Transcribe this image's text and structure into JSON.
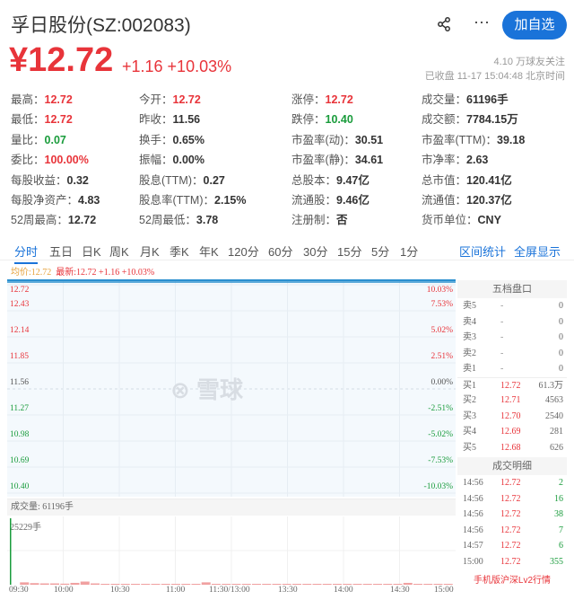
{
  "header": {
    "title": "孚日股份(SZ:002083)",
    "add_label": "加自选",
    "more": "···"
  },
  "quote": {
    "price": "¥12.72",
    "change": "+1.16 +10.03%",
    "followers": "4.10 万球友关注",
    "status": "已收盘 11-17 15:04:48 北京时间"
  },
  "stats": [
    [
      {
        "k": "最高：",
        "v": "12.72",
        "c": "red"
      },
      {
        "k": "今开：",
        "v": "12.72",
        "c": "red"
      },
      {
        "k": "涨停：",
        "v": "12.72",
        "c": "red"
      },
      {
        "k": "成交量：",
        "v": "61196手",
        "c": ""
      }
    ],
    [
      {
        "k": "最低：",
        "v": "12.72",
        "c": "red"
      },
      {
        "k": "昨收：",
        "v": "11.56",
        "c": ""
      },
      {
        "k": "跌停：",
        "v": "10.40",
        "c": "green"
      },
      {
        "k": "成交额：",
        "v": "7784.15万",
        "c": ""
      }
    ],
    [
      {
        "k": "量比：",
        "v": "0.07",
        "c": "green"
      },
      {
        "k": "换手：",
        "v": "0.65%",
        "c": ""
      },
      {
        "k": "市盈率(动)：",
        "v": "30.51",
        "c": ""
      },
      {
        "k": "市盈率(TTM)：",
        "v": "39.18",
        "c": ""
      }
    ],
    [
      {
        "k": "委比：",
        "v": "100.00%",
        "c": "red"
      },
      {
        "k": "振幅：",
        "v": "0.00%",
        "c": ""
      },
      {
        "k": "市盈率(静)：",
        "v": "34.61",
        "c": ""
      },
      {
        "k": "市净率：",
        "v": "2.63",
        "c": ""
      }
    ],
    [
      {
        "k": "每股收益：",
        "v": "0.32",
        "c": ""
      },
      {
        "k": "股息(TTM)：",
        "v": "0.27",
        "c": ""
      },
      {
        "k": "总股本：",
        "v": "9.47亿",
        "c": ""
      },
      {
        "k": "总市值：",
        "v": "120.41亿",
        "c": ""
      }
    ],
    [
      {
        "k": "每股净资产：",
        "v": "4.83",
        "c": ""
      },
      {
        "k": "股息率(TTM)：",
        "v": "2.15%",
        "c": ""
      },
      {
        "k": "流通股：",
        "v": "9.46亿",
        "c": ""
      },
      {
        "k": "流通值：",
        "v": "120.37亿",
        "c": ""
      }
    ],
    [
      {
        "k": "52周最高：",
        "v": "12.72",
        "c": ""
      },
      {
        "k": "52周最低：",
        "v": "3.78",
        "c": ""
      },
      {
        "k": "注册制：",
        "v": "否",
        "c": ""
      },
      {
        "k": "货币单位：",
        "v": "CNY",
        "c": ""
      }
    ]
  ],
  "tabs": [
    "分时",
    "五日",
    "日K",
    "周K",
    "月K",
    "季K",
    "年K",
    "120分",
    "60分",
    "30分",
    "15分",
    "5分",
    "1分"
  ],
  "right_tabs": [
    "区间统计",
    "全屏显示"
  ],
  "chart_legend": {
    "avg": "均价:12.72",
    "latest": "最新:12.72 +1.16 +10.03%"
  },
  "watermark": "雪球",
  "chart_data": {
    "type": "line",
    "price_ticks": [
      "12.72",
      "12.43",
      "12.14",
      "11.85",
      "11.56",
      "11.27",
      "10.98",
      "10.69",
      "10.40"
    ],
    "pct_ticks": [
      "10.03%",
      "7.53%",
      "5.02%",
      "2.51%",
      "0.00%",
      "-2.51%",
      "-5.02%",
      "-7.53%",
      "-10.03%"
    ],
    "time_ticks": [
      "09:30",
      "10:00",
      "10:30",
      "11:00",
      "11:30/13:00",
      "13:30",
      "14:00",
      "14:30",
      "15:00"
    ],
    "price_series": [
      12.72,
      12.72
    ],
    "ylim": [
      10.4,
      12.72
    ],
    "volume_label": "成交量: 61196手",
    "volume_max_label": "25229手",
    "volume_max": 25229,
    "volume_series": [
      25229,
      900,
      600,
      500,
      500,
      400,
      700,
      1200,
      500,
      300,
      300,
      250,
      250,
      300,
      200,
      250,
      300,
      250,
      250,
      900,
      250,
      200,
      200,
      250,
      200,
      250,
      200,
      250,
      200,
      200,
      300,
      250,
      250,
      250,
      200,
      300,
      250,
      300,
      250,
      700,
      250,
      250,
      300,
      250
    ]
  },
  "order_book": {
    "title": "五档盘口",
    "rows": [
      {
        "label": "卖5",
        "price": "-",
        "vol": "0",
        "c": ""
      },
      {
        "label": "卖4",
        "price": "-",
        "vol": "0",
        "c": ""
      },
      {
        "label": "卖3",
        "price": "-",
        "vol": "0",
        "c": ""
      },
      {
        "label": "卖2",
        "price": "-",
        "vol": "0",
        "c": ""
      },
      {
        "label": "卖1",
        "price": "-",
        "vol": "0",
        "c": ""
      },
      {
        "label": "买1",
        "price": "12.72",
        "vol": "61.3万",
        "c": "red"
      },
      {
        "label": "买2",
        "price": "12.71",
        "vol": "4563",
        "c": "red"
      },
      {
        "label": "买3",
        "price": "12.70",
        "vol": "2540",
        "c": "red"
      },
      {
        "label": "买4",
        "price": "12.69",
        "vol": "281",
        "c": "red"
      },
      {
        "label": "买5",
        "price": "12.68",
        "vol": "626",
        "c": "red"
      }
    ]
  },
  "trades": {
    "title": "成交明细",
    "rows": [
      {
        "time": "14:56",
        "price": "12.72",
        "vol": "2"
      },
      {
        "time": "14:56",
        "price": "12.72",
        "vol": "16"
      },
      {
        "time": "14:56",
        "price": "12.72",
        "vol": "38"
      },
      {
        "time": "14:56",
        "price": "12.72",
        "vol": "7"
      },
      {
        "time": "14:57",
        "price": "12.72",
        "vol": "6"
      },
      {
        "time": "15:00",
        "price": "12.72",
        "vol": "355"
      }
    ],
    "lv2": "手机版沪深Lv2行情"
  }
}
